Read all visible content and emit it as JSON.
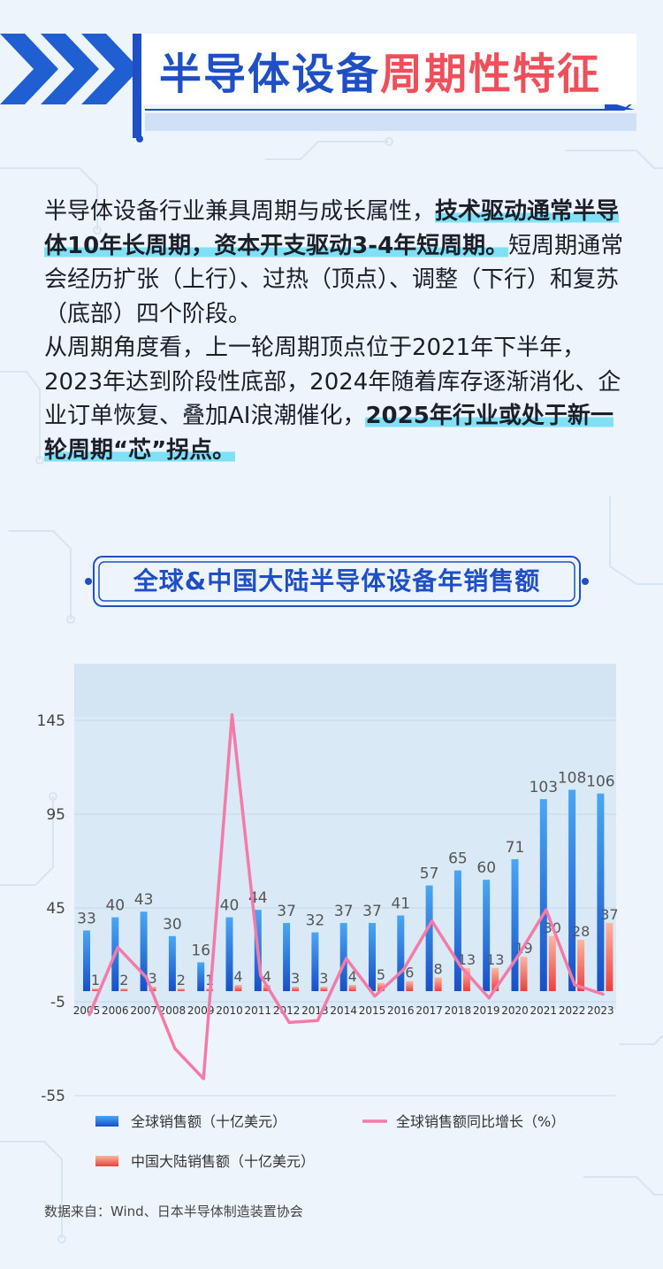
{
  "title": {
    "part1": "半导体设备",
    "part2": "周期性特征"
  },
  "paragraphs": [
    [
      {
        "text": "半导体设备行业兼具周期与成长属性，",
        "hl": false
      },
      {
        "text": "技术驱动通常半导体10年长周期，资本开支驱动3-4年短周期。",
        "hl": true
      },
      {
        "text": "短周期通常会经历扩张（上行）、过热（顶点）、调整（下行）和复苏（底部）四个阶段。",
        "hl": false
      }
    ],
    [
      {
        "text": "从周期角度看，上一轮周期顶点位于2021年下半年，2023年达到阶段性底部，2024年随着库存逐渐消化、企业订单恢复、叠加AI浪潮催化，",
        "hl": false
      },
      {
        "text": "2025年行业或处于新一轮周期“芯”拐点。",
        "hl": true
      }
    ]
  ],
  "chart_title": "全球&中国大陆半导体设备年销售额",
  "chart_data": {
    "type": "bar",
    "categories": [
      "2005",
      "2006",
      "2007",
      "2008",
      "2009",
      "2010",
      "2011",
      "2012",
      "2013",
      "2014",
      "2015",
      "2016",
      "2017",
      "2018",
      "2019",
      "2020",
      "2021",
      "2022",
      "2023"
    ],
    "series": [
      {
        "name": "全球销售额（十亿美元）",
        "type": "bar",
        "color": "#1a66d6",
        "values": [
          33,
          40,
          43,
          30,
          16,
          40,
          44,
          37,
          32,
          37,
          37,
          41,
          57,
          65,
          60,
          71,
          103,
          108,
          106
        ],
        "labels": [
          "33",
          "40",
          "43",
          "30",
          "16",
          "40",
          "44",
          "37",
          "32",
          "37",
          "37",
          "41",
          "57",
          "65",
          "60",
          "71",
          "103",
          "108",
          "106"
        ]
      },
      {
        "name": "中国大陆销售额（十亿美元）",
        "type": "bar",
        "color": "#f0564f",
        "values": [
          1,
          2,
          3,
          2,
          1,
          4,
          4,
          3,
          3,
          4,
          5,
          6,
          8,
          13,
          13,
          19,
          30,
          28,
          37
        ],
        "labels": [
          "1",
          "2",
          "3",
          "2",
          "1",
          "4",
          "4",
          "3",
          "3",
          "4",
          "5",
          "6",
          "8",
          "13",
          "13",
          "19",
          "30",
          "28",
          "37"
        ]
      },
      {
        "name": "全球销售额同比增长（%）",
        "type": "line",
        "color": "#f47aa8",
        "values": [
          -12,
          24,
          8,
          -30,
          -46,
          148,
          9,
          -16,
          -15,
          18,
          -2,
          12,
          38,
          14,
          -3,
          19,
          44,
          4,
          -1
        ]
      }
    ],
    "yaxis": {
      "ticks": [
        "145",
        "95",
        "45",
        "-5",
        "-55"
      ],
      "min": -60,
      "max": 175
    }
  },
  "source": "数据来自：Wind、日本半导体制造装置协会"
}
